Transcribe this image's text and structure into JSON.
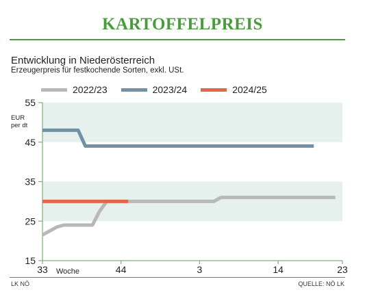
{
  "header": {
    "title": "KARTOFFELPREIS",
    "subtitle": "Entwicklung in Niederösterreich",
    "description": "Erzeugerpreis für festkochende Sorten, exkl. USt."
  },
  "footer": {
    "source_left": "LK NÖ",
    "source_right": "QUELLE: NÖ LK"
  },
  "colors": {
    "headline": "#4a9a3e",
    "band": "#e6f0ec",
    "axis": "#7fae7a"
  },
  "chart_data": {
    "type": "line",
    "title": "",
    "unit_label": "EUR\nper dt",
    "xlabel": "Woche",
    "ylim": [
      15,
      55
    ],
    "y_ticks": [
      15,
      25,
      35,
      45,
      55
    ],
    "x_ticks": [
      {
        "label": "33",
        "pos": 0
      },
      {
        "label": "44",
        "pos": 11
      },
      {
        "label": "3",
        "pos": 22
      },
      {
        "label": "14",
        "pos": 33
      },
      {
        "label": "23",
        "pos": 42
      }
    ],
    "bands": [
      [
        25,
        35
      ],
      [
        45,
        55
      ]
    ],
    "legend_position": "top",
    "grid": false,
    "series": [
      {
        "name": "2022/23",
        "color": "#b8b8b8",
        "x": [
          0,
          1,
          2,
          3,
          4,
          5,
          6,
          7,
          8,
          9,
          10,
          11,
          12,
          13,
          14,
          15,
          16,
          17,
          18,
          19,
          20,
          21,
          22,
          23,
          24,
          25,
          26,
          27,
          28,
          29,
          30,
          31,
          32,
          33,
          34,
          35,
          36,
          37,
          38,
          39,
          40,
          41
        ],
        "values": [
          21.5,
          22.5,
          23.5,
          24,
          24,
          24,
          24,
          24,
          27.5,
          30,
          30,
          30,
          30,
          30,
          30,
          30,
          30,
          30,
          30,
          30,
          30,
          30,
          30,
          30,
          30,
          31,
          31,
          31,
          31,
          31,
          31,
          31,
          31,
          31,
          31,
          31,
          31,
          31,
          31,
          31,
          31,
          31
        ]
      },
      {
        "name": "2023/24",
        "color": "#6f92a6",
        "x": [
          0,
          1,
          2,
          3,
          4,
          5,
          6,
          7,
          8,
          9,
          10,
          11,
          12,
          13,
          14,
          15,
          16,
          17,
          18,
          19,
          20,
          21,
          22,
          23,
          24,
          25,
          26,
          27,
          28,
          29,
          30,
          31,
          32,
          33,
          34,
          35,
          36,
          37,
          38
        ],
        "values": [
          48,
          48,
          48,
          48,
          48,
          48,
          44,
          44,
          44,
          44,
          44,
          44,
          44,
          44,
          44,
          44,
          44,
          44,
          44,
          44,
          44,
          44,
          44,
          44,
          44,
          44,
          44,
          44,
          44,
          44,
          44,
          44,
          44,
          44,
          44,
          44,
          44,
          44,
          44
        ]
      },
      {
        "name": "2024/25",
        "color": "#e0674a",
        "x": [
          0,
          1,
          2,
          3,
          4,
          5,
          6,
          7,
          8,
          9,
          10,
          11,
          12
        ],
        "values": [
          30,
          30,
          30,
          30,
          30,
          30,
          30,
          30,
          30,
          30,
          30,
          30,
          30
        ]
      }
    ]
  }
}
